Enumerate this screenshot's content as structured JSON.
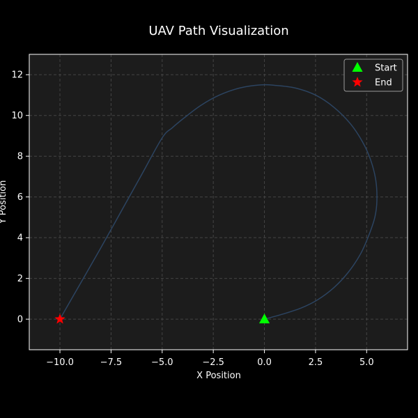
{
  "chart_data": {
    "type": "line",
    "title": "UAV Path Visualization",
    "xlabel": "X Position",
    "ylabel": "Y Position",
    "xlim": [
      -11.5,
      7.0
    ],
    "ylim": [
      -1.5,
      13.0
    ],
    "xticks": [
      -10.0,
      -7.5,
      -5.0,
      -2.5,
      0.0,
      2.5,
      5.0
    ],
    "xtick_labels": [
      "−10.0",
      "−7.5",
      "−5.0",
      "−2.5",
      "0.0",
      "2.5",
      "5.0"
    ],
    "yticks": [
      0,
      2,
      4,
      6,
      8,
      10,
      12
    ],
    "ytick_labels": [
      "0",
      "2",
      "4",
      "6",
      "8",
      "10",
      "12"
    ],
    "grid": true,
    "legend_position": "top-right",
    "series": [
      {
        "name": "",
        "color": "#2c4461",
        "x": [
          0.0,
          0.9,
          1.8,
          2.6,
          3.4,
          4.1,
          4.7,
          5.1,
          5.4,
          5.5,
          5.45,
          5.2,
          4.8,
          4.2,
          3.4,
          2.5,
          1.5,
          0.5,
          -0.2,
          -1.2,
          -2.2,
          -3.1,
          -3.9,
          -4.5,
          -5.0,
          -6.0,
          -7.0,
          -8.0,
          -9.0,
          -10.0
        ],
        "y": [
          0.0,
          0.25,
          0.55,
          0.95,
          1.55,
          2.3,
          3.2,
          4.1,
          5.0,
          5.8,
          6.8,
          7.8,
          8.7,
          9.6,
          10.4,
          11.0,
          11.35,
          11.48,
          11.5,
          11.35,
          11.0,
          10.5,
          9.9,
          9.4,
          8.9,
          7.1,
          5.3,
          3.5,
          1.75,
          0.0
        ]
      }
    ],
    "markers": [
      {
        "name": "Start",
        "shape": "triangle",
        "color": "#00ff00",
        "x": 0.0,
        "y": 0.0
      },
      {
        "name": "End",
        "shape": "star",
        "color": "#ff0000",
        "x": -10.0,
        "y": 0.0
      }
    ],
    "colors": {
      "background": "#000000",
      "plot_area": "#1c1c1c",
      "grid": "#444444",
      "frame": "#ffffff"
    }
  }
}
